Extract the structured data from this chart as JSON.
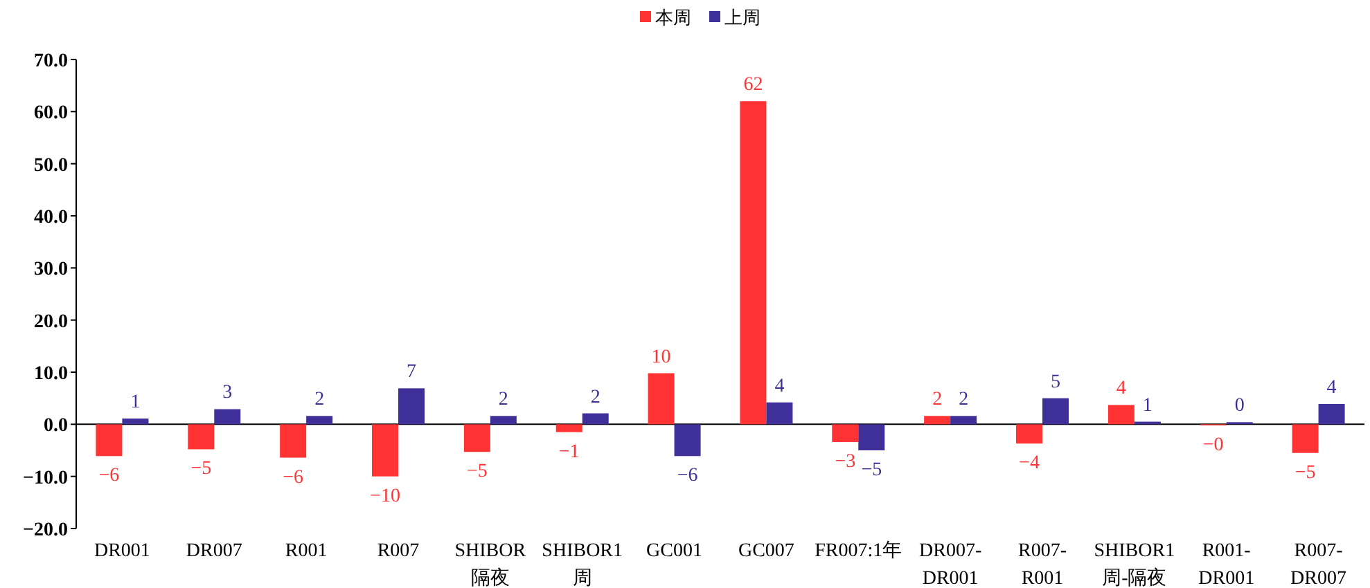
{
  "chart_data": {
    "type": "bar",
    "categories": [
      "DR001",
      "DR007",
      "R001",
      "R007",
      "SHIBOR隔夜",
      "SHIBOR1周",
      "GC001",
      "GC007",
      "FR007:1年",
      "DR007-DR001",
      "R007-R001",
      "SHIBOR1周-隔夜",
      "R001-DR001",
      "R007-DR007"
    ],
    "series": [
      {
        "name": "本周",
        "color": "#ff3333",
        "values": [
          -6.1,
          -4.8,
          -6.4,
          -10.0,
          -5.3,
          -1.5,
          9.8,
          62.0,
          -3.4,
          1.6,
          -3.7,
          3.7,
          -0.2,
          -5.5
        ],
        "value_labels": [
          "−6",
          "−5",
          "−6",
          "−10",
          "−5",
          "−1",
          "10",
          "62",
          "−3",
          "2",
          "−4",
          "4",
          "−0",
          "−5"
        ]
      },
      {
        "name": "上周",
        "color": "#3f2f98",
        "values": [
          1.1,
          2.9,
          1.6,
          6.9,
          1.6,
          2.1,
          -6.1,
          4.2,
          -5.0,
          1.6,
          5.0,
          0.5,
          0.4,
          3.9
        ],
        "value_labels": [
          "1",
          "3",
          "2",
          "7",
          "2",
          "2",
          "−6",
          "4",
          "−5",
          "2",
          "5",
          "1",
          "0",
          "4"
        ]
      }
    ],
    "ylim": [
      -20,
      70
    ],
    "yticks": [
      {
        "value": -20,
        "label": "−20.0"
      },
      {
        "value": -10,
        "label": "−10.0"
      },
      {
        "value": 0,
        "label": "0.0"
      },
      {
        "value": 10,
        "label": "10.0"
      },
      {
        "value": 20,
        "label": "20.0"
      },
      {
        "value": 30,
        "label": "30.0"
      },
      {
        "value": 40,
        "label": "40.0"
      },
      {
        "value": 50,
        "label": "50.0"
      },
      {
        "value": 60,
        "label": "60.0"
      },
      {
        "value": 70,
        "label": "70.0"
      }
    ],
    "legend": "top"
  }
}
